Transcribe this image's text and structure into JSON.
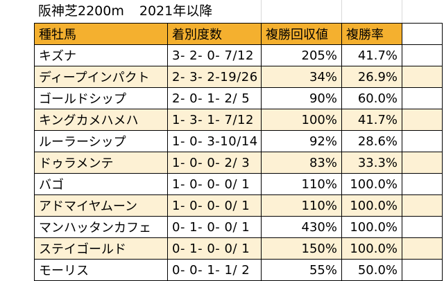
{
  "title": {
    "course": "阪神芝2200m",
    "period": "2021年以降"
  },
  "table": {
    "headers": [
      "種牡馬",
      "着別度数",
      "複勝回収値",
      "複勝率"
    ],
    "rows": [
      {
        "horse": "キズナ",
        "record": "3- 2- 0- 7/12",
        "recovery": "205%",
        "rate": "41.7%"
      },
      {
        "horse": "ディープインパクト",
        "record": "2- 3- 2-19/26",
        "recovery": "34%",
        "rate": "26.9%"
      },
      {
        "horse": "ゴールドシップ",
        "record": "2- 0- 1- 2/ 5",
        "recovery": "90%",
        "rate": "60.0%"
      },
      {
        "horse": "キングカメハメハ",
        "record": "1- 3- 1- 7/12",
        "recovery": "100%",
        "rate": "41.7%"
      },
      {
        "horse": "ルーラーシップ",
        "record": "1- 0- 3-10/14",
        "recovery": "92%",
        "rate": "28.6%"
      },
      {
        "horse": "ドゥラメンテ",
        "record": "1- 0- 0- 2/ 3",
        "recovery": "83%",
        "rate": "33.3%"
      },
      {
        "horse": "バゴ",
        "record": "1- 0- 0- 0/ 1",
        "recovery": "110%",
        "rate": "100.0%"
      },
      {
        "horse": "アドマイヤムーン",
        "record": "1- 0- 0- 0/ 1",
        "recovery": "110%",
        "rate": "100.0%"
      },
      {
        "horse": "マンハッタンカフェ",
        "record": "0- 1- 0- 0/ 1",
        "recovery": "430%",
        "rate": "100.0%"
      },
      {
        "horse": "ステイゴールド",
        "record": "0- 1- 0- 0/ 1",
        "recovery": "150%",
        "rate": "100.0%"
      },
      {
        "horse": "モーリス",
        "record": "0- 0- 1- 1/ 2",
        "recovery": "55%",
        "rate": "50.0%"
      }
    ]
  },
  "colors": {
    "header_fill": "#f4b02f",
    "alt_row_fill": "#fdf1d4"
  }
}
